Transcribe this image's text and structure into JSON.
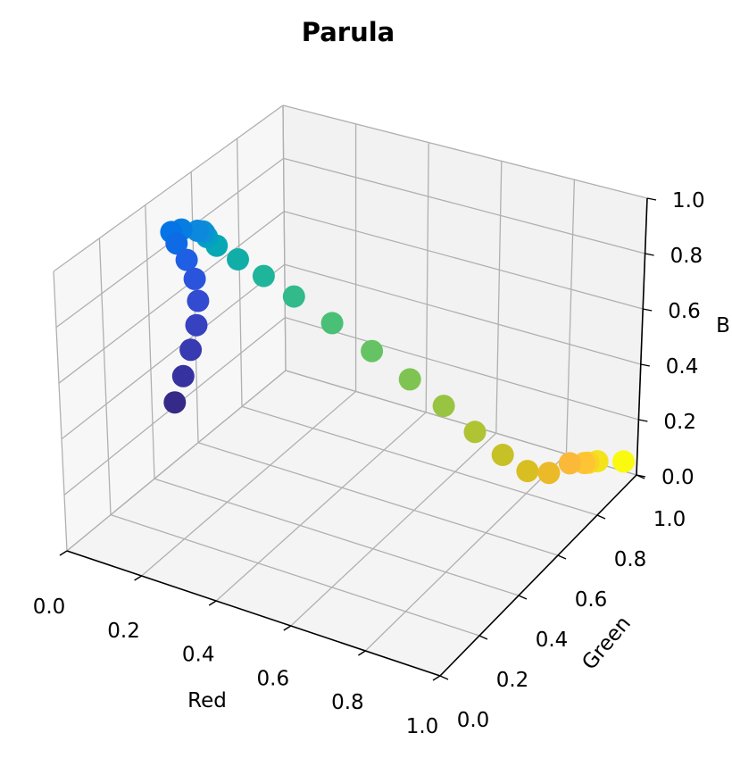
{
  "chart_data": {
    "type": "scatter",
    "title": "Parula",
    "xlabel": "Red",
    "ylabel": "Green",
    "zlabel": "B",
    "xlim": [
      0,
      1
    ],
    "ylim": [
      0,
      1
    ],
    "zlim": [
      0,
      1
    ],
    "xticks": [
      "0.0",
      "0.2",
      "0.4",
      "0.6",
      "0.8",
      "1.0"
    ],
    "yticks": [
      "0.0",
      "0.2",
      "0.4",
      "0.6",
      "0.8",
      "1.0"
    ],
    "zticks": [
      "0.0",
      "0.2",
      "0.4",
      "0.6",
      "0.8",
      "1.0"
    ],
    "grid": true,
    "colors": {
      "pane_xz": "#f2f2f2",
      "pane_yz": "#f7f7f7",
      "pane_xy": "#f4f4f4",
      "gridline": "#b0b0b0",
      "axis_line": "#000000"
    },
    "points": [
      {
        "r": 0.208,
        "g": 0.166,
        "b": 0.529,
        "color": "#352a87"
      },
      {
        "r": 0.214,
        "g": 0.196,
        "b": 0.61,
        "color": "#3632a0"
      },
      {
        "r": 0.217,
        "g": 0.226,
        "b": 0.69,
        "color": "#373ab1"
      },
      {
        "r": 0.214,
        "g": 0.258,
        "b": 0.76,
        "color": "#3642c0"
      },
      {
        "r": 0.198,
        "g": 0.292,
        "b": 0.822,
        "color": "#324bd0"
      },
      {
        "r": 0.165,
        "g": 0.33,
        "b": 0.866,
        "color": "#2a54dc"
      },
      {
        "r": 0.116,
        "g": 0.372,
        "b": 0.89,
        "color": "#1e5fe3"
      },
      {
        "r": 0.06,
        "g": 0.416,
        "b": 0.9,
        "color": "#0f6ae6"
      },
      {
        "r": 0.02,
        "g": 0.456,
        "b": 0.9,
        "color": "#0574e6"
      },
      {
        "r": 0.024,
        "g": 0.496,
        "b": 0.884,
        "color": "#067ee1"
      },
      {
        "r": 0.046,
        "g": 0.534,
        "b": 0.862,
        "color": "#0c88dc"
      },
      {
        "r": 0.04,
        "g": 0.568,
        "b": 0.834,
        "color": "#0a91d5"
      },
      {
        "r": 0.024,
        "g": 0.6,
        "b": 0.8,
        "color": "#0699cc"
      },
      {
        "r": 0.012,
        "g": 0.63,
        "b": 0.76,
        "color": "#03a0c2"
      },
      {
        "r": 0.022,
        "g": 0.658,
        "b": 0.712,
        "color": "#06a8b6"
      },
      {
        "r": 0.066,
        "g": 0.684,
        "b": 0.66,
        "color": "#11aea8"
      },
      {
        "r": 0.124,
        "g": 0.708,
        "b": 0.604,
        "color": "#1fb59a"
      },
      {
        "r": 0.196,
        "g": 0.73,
        "b": 0.54,
        "color": "#32ba8a"
      },
      {
        "r": 0.292,
        "g": 0.75,
        "b": 0.464,
        "color": "#4abf76"
      },
      {
        "r": 0.396,
        "g": 0.764,
        "b": 0.39,
        "color": "#65c363"
      },
      {
        "r": 0.5,
        "g": 0.77,
        "b": 0.32,
        "color": "#7fc452"
      },
      {
        "r": 0.596,
        "g": 0.77,
        "b": 0.258,
        "color": "#98c442"
      },
      {
        "r": 0.688,
        "g": 0.764,
        "b": 0.2,
        "color": "#afc333"
      },
      {
        "r": 0.772,
        "g": 0.756,
        "b": 0.152,
        "color": "#c5c127"
      },
      {
        "r": 0.85,
        "g": 0.744,
        "b": 0.13,
        "color": "#d9be21"
      },
      {
        "r": 0.92,
        "g": 0.73,
        "b": 0.16,
        "color": "#ebba29"
      },
      {
        "r": 0.98,
        "g": 0.73,
        "b": 0.22,
        "color": "#fab938"
      },
      {
        "r": 0.996,
        "g": 0.77,
        "b": 0.2,
        "color": "#fec433"
      },
      {
        "r": 0.97,
        "g": 0.83,
        "b": 0.15,
        "color": "#f7d426"
      },
      {
        "r": 0.958,
        "g": 0.89,
        "b": 0.11,
        "color": "#f4e31c"
      },
      {
        "r": 0.976,
        "g": 0.98,
        "b": 0.055,
        "color": "#f9fa0e"
      }
    ]
  }
}
